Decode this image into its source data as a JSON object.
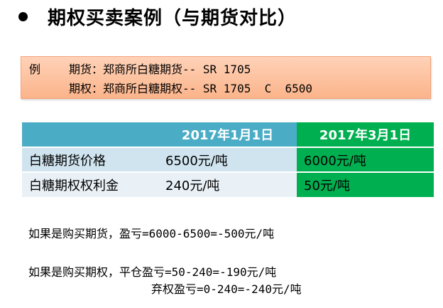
{
  "title": "期权买卖案例（与期货对比）",
  "example": {
    "label": "例",
    "line1": "期货：郑商所白糖期货-- SR 1705",
    "line2": "期权：郑商所白糖期权-- SR 1705  C  6500"
  },
  "table": {
    "headers": [
      "",
      "2017年1月1日",
      "2017年3月1日"
    ],
    "rows": [
      [
        "白糖期货价格",
        "6500元/吨",
        "6000元/吨"
      ],
      [
        "白糖期权权利金",
        "240元/吨",
        "50元/吨"
      ]
    ],
    "colors": {
      "header_blue": "#4bacc6",
      "header_green": "#00b050",
      "row_light": "#d0e4ef"
    }
  },
  "notes": {
    "futures": "如果是购买期货，盈亏=6000-6500=-500元/吨",
    "option_close": "如果是购买期权，平仓盈亏=50-240=-190元/吨",
    "option_abandon": "弃权盈亏=0-240=-240元/吨"
  },
  "icons": {
    "bullet": "filled-circle"
  }
}
